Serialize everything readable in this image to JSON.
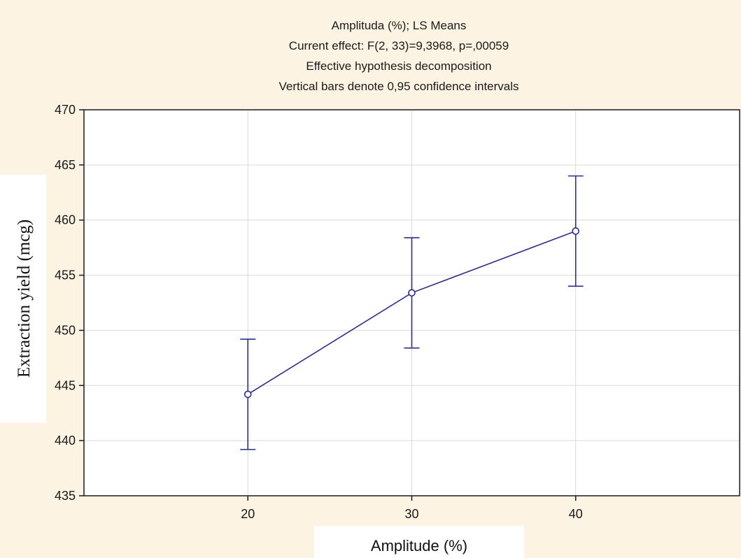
{
  "chart_data": {
    "type": "line",
    "title_lines": [
      "Amplituda (%); LS Means",
      "Current effect: F(2, 33)=9,3968, p=,00059",
      "Effective hypothesis decomposition",
      "Vertical bars denote 0,95 confidence intervals"
    ],
    "xlabel": "Amplitude (%)",
    "ylabel": "Extraction yield (mcg)",
    "categories": [
      "20",
      "30",
      "40"
    ],
    "series": [
      {
        "values": [
          444.2,
          453.4,
          459.0
        ],
        "ci_lower": [
          439.2,
          448.4,
          454.0
        ],
        "ci_upper": [
          449.2,
          458.4,
          464.0
        ]
      }
    ],
    "ylim": [
      435,
      470
    ],
    "yticks": [
      "435",
      "440",
      "445",
      "450",
      "455",
      "460",
      "465",
      "470"
    ],
    "grid": true,
    "colors": {
      "background": "#fdf3e3",
      "plot_background": "#ffffff",
      "series": "#2e2e85",
      "grid": "#d9d9d9",
      "label_box": "#ffffff"
    }
  }
}
